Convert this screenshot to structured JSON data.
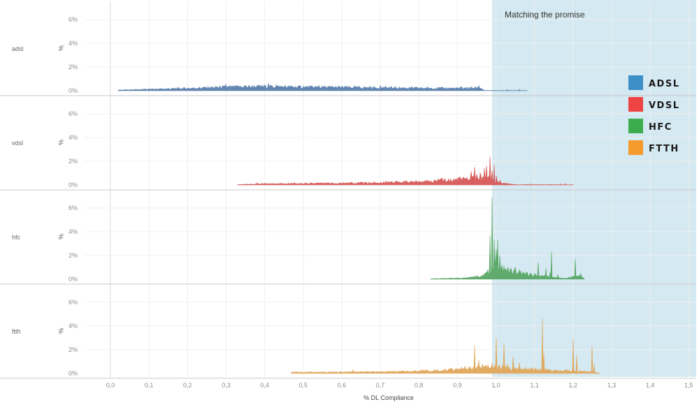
{
  "chart_data": {
    "type": "area",
    "xlabel": "% DL Compliance",
    "ylabel": "%",
    "xlim": [
      -0.1,
      1.5
    ],
    "ylim": [
      0,
      7
    ],
    "x_ticks": [
      "0,0",
      "0,1",
      "0,2",
      "0,3",
      "0,4",
      "0,5",
      "0,6",
      "0,7",
      "0,8",
      "0,9",
      "1,0",
      "1,1",
      "1,2",
      "1,3",
      "1,4",
      "1,5"
    ],
    "y_ticks": [
      "0%",
      "2%",
      "4%",
      "6%"
    ],
    "annotation": {
      "text": "Matching the promise",
      "x_start": 0.985,
      "x_end": 1.51
    },
    "legend": [
      {
        "label": "ADSL",
        "color": "#3d8fc7"
      },
      {
        "label": "VDSL",
        "color": "#ee4444"
      },
      {
        "label": "HFC",
        "color": "#3cac4c"
      },
      {
        "label": "FTTH",
        "color": "#f59a2d"
      }
    ],
    "series": [
      {
        "name": "adsl",
        "color": "#5b80ae",
        "x_range": [
          0.02,
          1.08
        ],
        "base": [
          [
            0.02,
            0.05
          ],
          [
            0.1,
            0.12
          ],
          [
            0.2,
            0.2
          ],
          [
            0.3,
            0.3
          ],
          [
            0.4,
            0.35
          ],
          [
            0.5,
            0.3
          ],
          [
            0.6,
            0.28
          ],
          [
            0.7,
            0.25
          ],
          [
            0.8,
            0.22
          ],
          [
            0.9,
            0.2
          ],
          [
            0.96,
            0.25
          ],
          [
            0.97,
            0.02
          ],
          [
            1.08,
            0.02
          ]
        ],
        "peaks": [
          [
            0.3,
            0.55
          ],
          [
            0.35,
            0.45
          ],
          [
            0.41,
            0.6
          ],
          [
            0.43,
            0.5
          ],
          [
            0.5,
            0.4
          ],
          [
            0.54,
            0.45
          ],
          [
            0.7,
            0.45
          ],
          [
            0.91,
            0.35
          ],
          [
            0.955,
            0.45
          ],
          [
            1.03,
            0.1
          ],
          [
            1.06,
            0.12
          ]
        ]
      },
      {
        "name": "vdsl",
        "color": "#d65a5a",
        "x_range": [
          0.33,
          1.2
        ],
        "base": [
          [
            0.33,
            0.03
          ],
          [
            0.4,
            0.1
          ],
          [
            0.5,
            0.12
          ],
          [
            0.6,
            0.15
          ],
          [
            0.7,
            0.2
          ],
          [
            0.8,
            0.28
          ],
          [
            0.85,
            0.35
          ],
          [
            0.9,
            0.45
          ],
          [
            0.95,
            0.6
          ],
          [
            0.98,
            0.6
          ],
          [
            1.0,
            0.3
          ],
          [
            1.03,
            0.1
          ],
          [
            1.05,
            0.03
          ],
          [
            1.2,
            0.02
          ]
        ],
        "peaks": [
          [
            0.38,
            0.2
          ],
          [
            0.52,
            0.18
          ],
          [
            0.66,
            0.25
          ],
          [
            0.83,
            0.35
          ],
          [
            0.86,
            0.6
          ],
          [
            0.9,
            0.55
          ],
          [
            0.925,
            0.6
          ],
          [
            0.935,
            1.15
          ],
          [
            0.945,
            1.5
          ],
          [
            0.95,
            0.9
          ],
          [
            0.96,
            1.0
          ],
          [
            0.97,
            1.4
          ],
          [
            0.975,
            1.6
          ],
          [
            0.985,
            2.4
          ],
          [
            0.99,
            1.2
          ],
          [
            0.995,
            1.7
          ],
          [
            1.0,
            0.8
          ],
          [
            1.01,
            0.4
          ],
          [
            1.09,
            0.1
          ],
          [
            1.17,
            0.1
          ],
          [
            1.18,
            0.12
          ]
        ]
      },
      {
        "name": "hfc",
        "color": "#58a764",
        "x_range": [
          0.83,
          1.23
        ],
        "base": [
          [
            0.83,
            0.03
          ],
          [
            0.9,
            0.08
          ],
          [
            0.96,
            0.2
          ],
          [
            0.985,
            0.8
          ],
          [
            1.0,
            1.2
          ],
          [
            1.02,
            0.8
          ],
          [
            1.05,
            0.6
          ],
          [
            1.08,
            0.4
          ],
          [
            1.1,
            0.3
          ],
          [
            1.15,
            0.15
          ],
          [
            1.18,
            0.05
          ],
          [
            1.2,
            0.2
          ],
          [
            1.21,
            0.3
          ],
          [
            1.225,
            0.15
          ],
          [
            1.23,
            0.02
          ]
        ],
        "peaks": [
          [
            0.95,
            0.3
          ],
          [
            0.97,
            0.45
          ],
          [
            0.985,
            3.7
          ],
          [
            0.99,
            6.9
          ],
          [
            0.995,
            3.3
          ],
          [
            1.0,
            2.5
          ],
          [
            1.005,
            3.3
          ],
          [
            1.01,
            2.0
          ],
          [
            1.015,
            1.2
          ],
          [
            1.02,
            1.1
          ],
          [
            1.03,
            0.9
          ],
          [
            1.04,
            0.7
          ],
          [
            1.05,
            1.0
          ],
          [
            1.06,
            0.8
          ],
          [
            1.08,
            0.6
          ],
          [
            1.1,
            0.5
          ],
          [
            1.11,
            1.4
          ],
          [
            1.13,
            0.9
          ],
          [
            1.14,
            0.6
          ],
          [
            1.145,
            2.3
          ],
          [
            1.16,
            0.4
          ],
          [
            1.205,
            1.7
          ],
          [
            1.22,
            0.5
          ]
        ]
      },
      {
        "name": "ftth",
        "color": "#e0a65a",
        "x_range": [
          0.47,
          1.27
        ],
        "base": [
          [
            0.47,
            0.1
          ],
          [
            0.55,
            0.1
          ],
          [
            0.65,
            0.12
          ],
          [
            0.75,
            0.15
          ],
          [
            0.85,
            0.25
          ],
          [
            0.9,
            0.35
          ],
          [
            0.95,
            0.45
          ],
          [
            1.0,
            0.5
          ],
          [
            1.05,
            0.4
          ],
          [
            1.1,
            0.35
          ],
          [
            1.15,
            0.25
          ],
          [
            1.2,
            0.2
          ],
          [
            1.25,
            0.1
          ],
          [
            1.27,
            0.02
          ]
        ],
        "peaks": [
          [
            0.52,
            0.15
          ],
          [
            0.63,
            0.3
          ],
          [
            0.92,
            0.6
          ],
          [
            0.945,
            2.35
          ],
          [
            0.955,
            1.1
          ],
          [
            0.965,
            0.8
          ],
          [
            0.98,
            0.7
          ],
          [
            0.99,
            0.9
          ],
          [
            1.0,
            3.0
          ],
          [
            1.01,
            0.7
          ],
          [
            1.02,
            2.45
          ],
          [
            1.03,
            0.8
          ],
          [
            1.045,
            1.4
          ],
          [
            1.06,
            0.9
          ],
          [
            1.12,
            4.6
          ],
          [
            1.125,
            1.7
          ],
          [
            1.2,
            2.9
          ],
          [
            1.21,
            1.6
          ],
          [
            1.25,
            2.3
          ],
          [
            1.255,
            0.8
          ]
        ]
      }
    ]
  }
}
